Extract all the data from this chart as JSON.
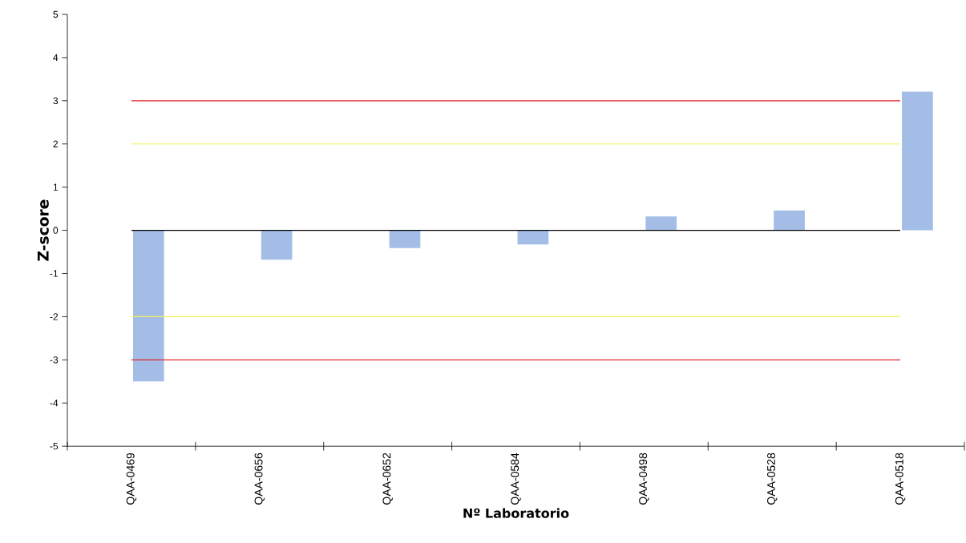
{
  "chart_data": {
    "type": "bar",
    "xlabel": "Nº Laboratorio",
    "ylabel": "Z-score",
    "categories": [
      "QAA-0469",
      "QAA-0656",
      "QAA-0652",
      "QAA-0584",
      "QAA-0498",
      "QAA-0528",
      "QAA-0518"
    ],
    "values": [
      -3.5,
      -0.68,
      -0.41,
      -0.33,
      0.32,
      0.46,
      3.21
    ],
    "color": "#a3bde6",
    "ylim": [
      -5,
      5
    ],
    "yticks": [
      -5,
      -4,
      -3,
      -2,
      -1,
      0,
      1,
      2,
      3,
      4,
      5
    ],
    "ref_lines": [
      {
        "axis": "y",
        "value": 3,
        "color": "#e0282d"
      },
      {
        "axis": "y",
        "value": 2,
        "color": "#f2f25a"
      },
      {
        "axis": "y",
        "value": 0,
        "color": "#000000"
      },
      {
        "axis": "y",
        "value": -2,
        "color": "#f2f25a"
      },
      {
        "axis": "y",
        "value": -3,
        "color": "#e0282d"
      }
    ]
  }
}
